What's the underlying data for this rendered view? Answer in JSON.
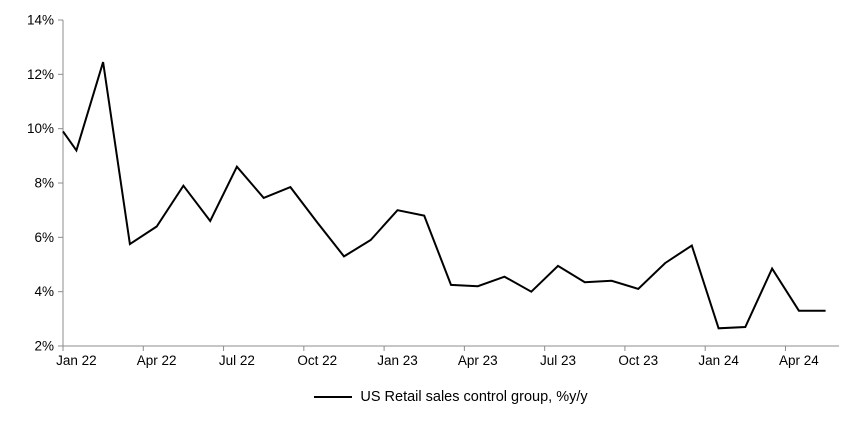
{
  "chart_data": {
    "type": "line",
    "title": "",
    "xlabel": "",
    "ylabel": "",
    "legend_label": "US Retail sales control group, %y/y",
    "legend_position": "bottom-center",
    "grid": false,
    "markers": false,
    "ylim": [
      2,
      14
    ],
    "ytick_step": 2,
    "ytick_labels": [
      "2%",
      "4%",
      "6%",
      "8%",
      "10%",
      "12%",
      "14%"
    ],
    "x_tick_labels": [
      "Jan 22",
      "Apr 22",
      "Jul 22",
      "Oct 22",
      "Jan 23",
      "Apr 23",
      "Jul 23",
      "Oct 23",
      "Jan 24",
      "Apr 24"
    ],
    "x_tick_interval_months": 3,
    "lead_in_value": 9.9,
    "x": [
      "Jan 22",
      "Feb 22",
      "Mar 22",
      "Apr 22",
      "May 22",
      "Jun 22",
      "Jul 22",
      "Aug 22",
      "Sep 22",
      "Oct 22",
      "Nov 22",
      "Dec 22",
      "Jan 23",
      "Feb 23",
      "Mar 23",
      "Apr 23",
      "May 23",
      "Jun 23",
      "Jul 23",
      "Aug 23",
      "Sep 23",
      "Oct 23",
      "Nov 23",
      "Dec 23",
      "Jan 24",
      "Feb 24",
      "Mar 24",
      "Apr 24",
      "May 24"
    ],
    "values": [
      9.2,
      12.45,
      5.75,
      6.4,
      7.9,
      6.6,
      8.6,
      7.45,
      7.85,
      6.55,
      5.3,
      5.9,
      7.0,
      6.8,
      4.25,
      4.2,
      4.55,
      4.0,
      4.95,
      4.35,
      4.4,
      4.1,
      5.05,
      5.7,
      2.65,
      2.7,
      4.85,
      3.3,
      3.3
    ],
    "colors": {
      "series": "#000000",
      "axis": "#8c8c8c",
      "labels": "#000000",
      "background": "#ffffff"
    }
  }
}
